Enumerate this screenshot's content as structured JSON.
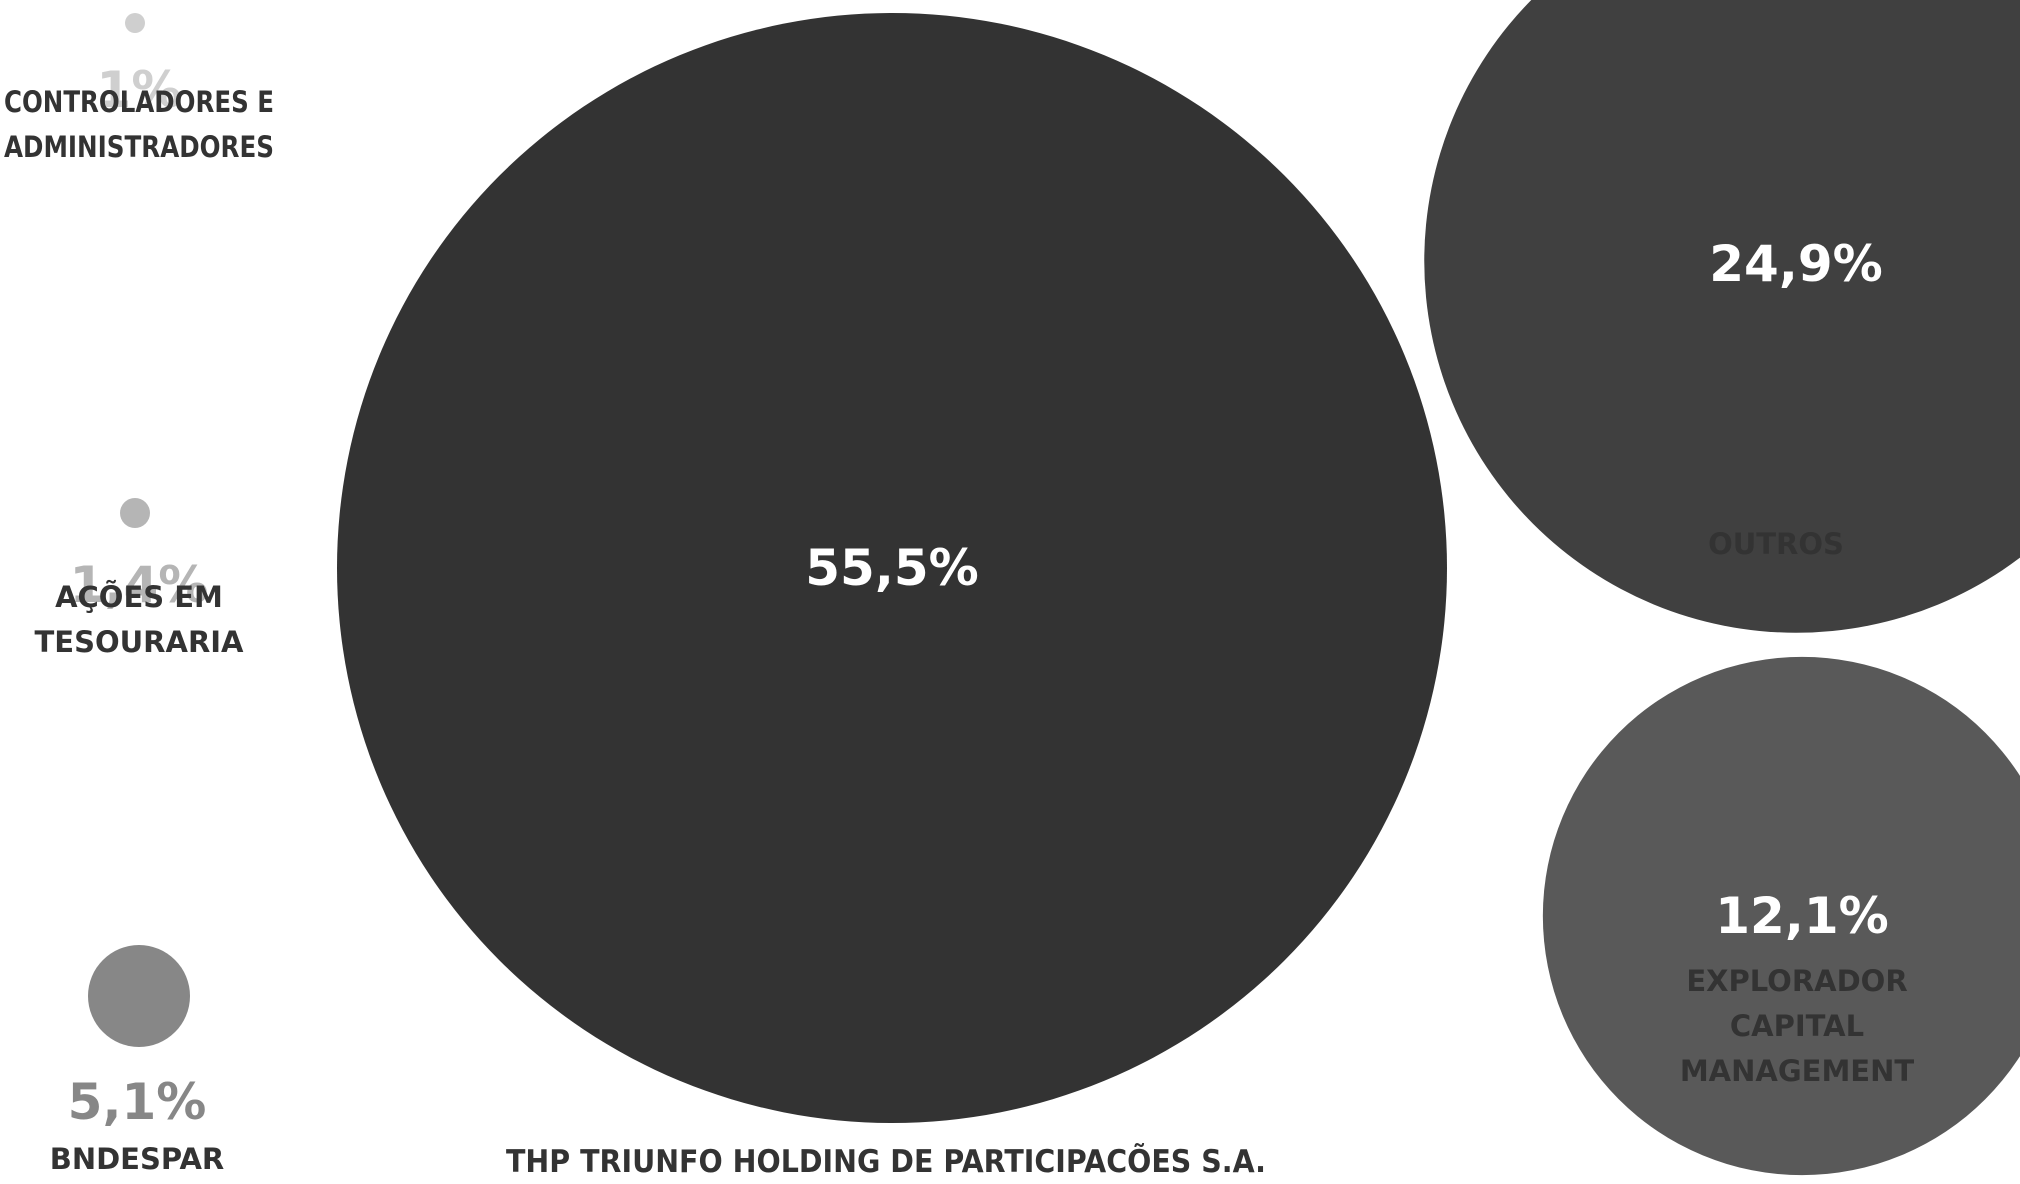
{
  "chart_data": {
    "type": "bubble",
    "unit": "%",
    "series": [
      {
        "key": "thp",
        "label_lines": [
          "THP TRIUNFO HOLDING DE PARTICIPACÕES S.A."
        ],
        "value": 55.5,
        "value_label": "55,5%",
        "color": "#333333",
        "value_color": "#ffffff"
      },
      {
        "key": "outros",
        "label_lines": [
          "OUTROS"
        ],
        "value": 24.9,
        "value_label": "24,9%",
        "color": "#404040",
        "value_color": "#ffffff"
      },
      {
        "key": "explorador",
        "label_lines": [
          "EXPLORADOR",
          "CAPITAL",
          "MANAGEMENT"
        ],
        "value": 12.1,
        "value_label": "12,1%",
        "color": "#595959",
        "value_color": "#ffffff"
      },
      {
        "key": "bndespar",
        "label_lines": [
          "BNDESPAR"
        ],
        "value": 5.1,
        "value_label": "5,1%",
        "color": "#878787",
        "value_color": "#878787"
      },
      {
        "key": "acoes",
        "label_lines": [
          "AÇÕES EM",
          "TESOURARIA"
        ],
        "value": 1.4,
        "value_label": "1,4%",
        "color": "#b5b5b5",
        "value_color": "#b5b5b5"
      },
      {
        "key": "controladores",
        "label_lines": [
          "CONTROLADORES E",
          "ADMINISTRADORES"
        ],
        "value": 1,
        "value_label": "1%",
        "color": "#cfcfcf",
        "value_color": "#cfcfcf"
      }
    ]
  }
}
